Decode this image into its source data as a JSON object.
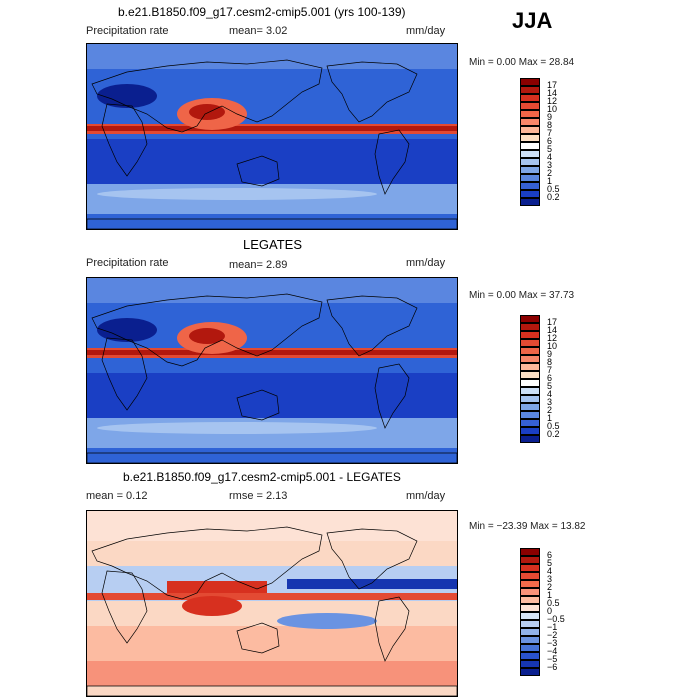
{
  "season": "JJA",
  "panels": [
    {
      "title": "b.e21.B1850.f09_g17.cesm2-cmip5.001 (yrs 100-139)",
      "left_label": "Precipitation rate",
      "stat1": "mean=   3.02",
      "stat2": "",
      "units": "mm/day",
      "minmax": "Min =    0.00 Max =   28.84",
      "map_kind": "cesm"
    },
    {
      "title": "LEGATES",
      "left_label": "Precipitation rate",
      "stat1": "mean=   2.89",
      "stat2": "",
      "units": "mm/day",
      "minmax": "Min =    0.00 Max =   37.73",
      "map_kind": "obs"
    },
    {
      "title": "b.e21.B1850.f09_g17.cesm2-cmip5.001 - LEGATES",
      "left_label": "mean =   0.12",
      "stat1": "rmse =   2.13",
      "stat2": "",
      "units": "mm/day",
      "minmax": "Min = −23.39 Max =  13.82",
      "map_kind": "diff"
    }
  ],
  "colorbars": {
    "precip": {
      "labels": [
        "17",
        "14",
        "12",
        "10",
        "9",
        "8",
        "7",
        "6",
        "5",
        "4",
        "3",
        "2",
        "1",
        "0.5",
        "0.2"
      ],
      "colors": [
        "#8b0000",
        "#b2180e",
        "#d7301f",
        "#e34a33",
        "#ef6548",
        "#f7866a",
        "#fcb79a",
        "#fde0c5",
        "#ffffff",
        "#cde0f7",
        "#a6c4f0",
        "#7ea6e8",
        "#5a86e0",
        "#3660d6",
        "#1a3fc4",
        "#0a1f8f"
      ]
    },
    "diff": {
      "labels": [
        "6",
        "5",
        "4",
        "3",
        "2",
        "1",
        "0.5",
        "0",
        "−0.5",
        "−1",
        "−2",
        "−3",
        "−4",
        "−5",
        "−6"
      ],
      "colors": [
        "#8b0000",
        "#b2180e",
        "#d7301f",
        "#e34a33",
        "#f16b4c",
        "#f7927a",
        "#fcbba1",
        "#fde2d5",
        "#d9e6f8",
        "#b7cef2",
        "#91b2ea",
        "#6a93e2",
        "#4673d8",
        "#2a52cc",
        "#1636b0",
        "#0a1f8f"
      ]
    }
  }
}
